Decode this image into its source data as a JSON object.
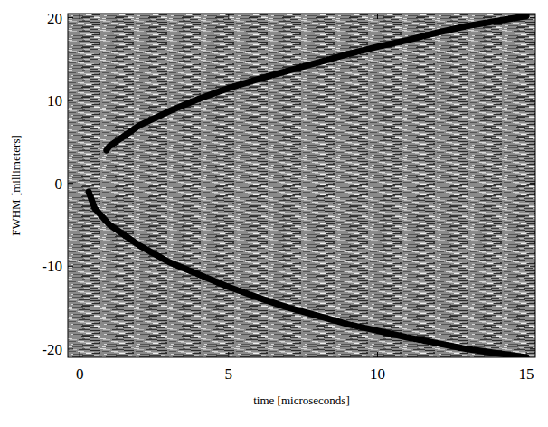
{
  "chart_data": {
    "type": "line",
    "x_label": "time [microseconds]",
    "y_label": "FWHM [millimeters]",
    "xlim": [
      -0.4,
      15.3
    ],
    "xticks": [
      0,
      5,
      10,
      15
    ],
    "ylim": [
      -21,
      20.5
    ],
    "yticks": [
      -20,
      -10,
      0,
      10,
      20
    ],
    "grid": false,
    "color": "#000000",
    "line_style": "solid",
    "series": [
      {
        "x": [
          0.9,
          1,
          2,
          3,
          4,
          5,
          6,
          7,
          8,
          9,
          10,
          11,
          12,
          13,
          14,
          15
        ],
        "values": [
          4,
          4.5,
          7,
          8.7,
          10.2,
          11.5,
          12.6,
          13.6,
          14.6,
          15.6,
          16.5,
          17.3,
          18.2,
          19,
          19.6,
          20.2
        ]
      },
      {
        "x": [
          0.3,
          0.5,
          1,
          2,
          3,
          4,
          5,
          6,
          7,
          8,
          9,
          10,
          11,
          12,
          13,
          14,
          15
        ],
        "values": [
          -1,
          -3,
          -5,
          -7.5,
          -9.5,
          -11,
          -12.5,
          -13.8,
          -15,
          -16,
          -17,
          -17.8,
          -18.6,
          -19.3,
          -20,
          -20.5,
          -21
        ]
      }
    ]
  }
}
